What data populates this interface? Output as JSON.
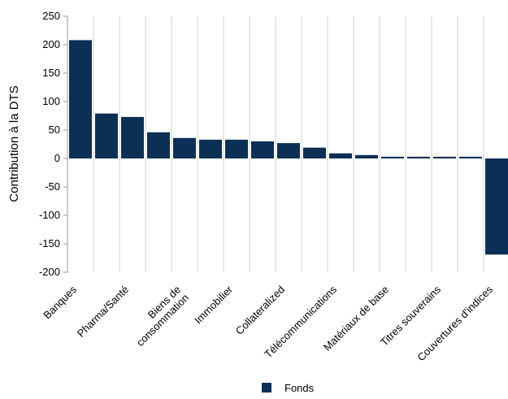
{
  "chart_data": {
    "type": "bar",
    "y_label": "Contribution à la DTS",
    "categories": [
      "Banques",
      null,
      "Pharma/Santé",
      null,
      "Biens de\nconsommation",
      null,
      "Immobilier",
      null,
      "Collateralized",
      null,
      "Télécommunications",
      null,
      "Matériaux de base",
      null,
      "Titres souverains",
      null,
      "Couvertures d'indices"
    ],
    "series": [
      {
        "name": "Fonds",
        "color": "#0c2f55",
        "values": [
          208,
          79,
          73,
          46,
          36,
          33,
          33,
          30,
          27,
          19,
          9,
          6,
          3,
          3,
          3,
          3,
          -169
        ]
      }
    ],
    "ylim": [
      -200,
      250
    ],
    "yticks": [
      -200,
      -150,
      -100,
      -50,
      0,
      50,
      100,
      150,
      200,
      250
    ],
    "grid": true,
    "legend": "bottom"
  }
}
